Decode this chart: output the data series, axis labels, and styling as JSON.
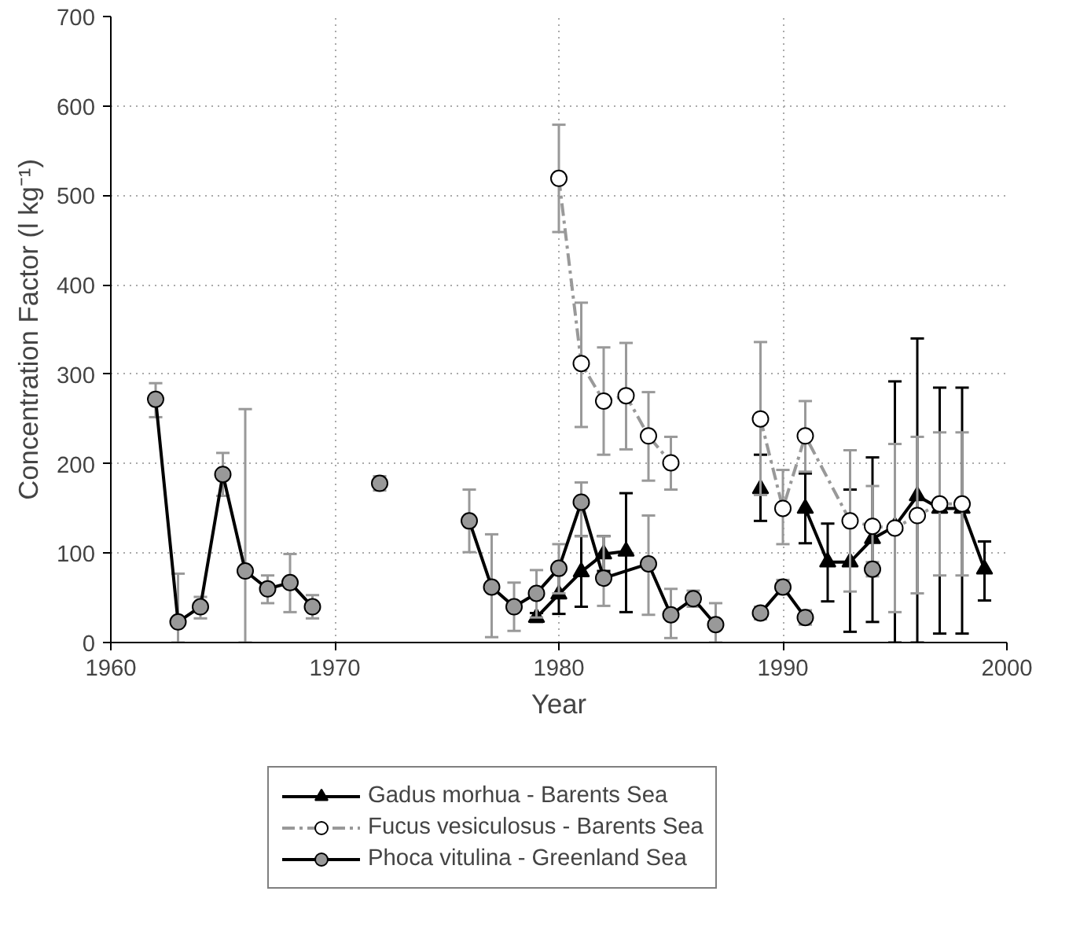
{
  "chart_data": {
    "type": "line",
    "xlabel": "Year",
    "ylabel": "Concentration Factor (l kg⁻¹)",
    "xlim": [
      1960,
      2000
    ],
    "ylim": [
      0,
      700
    ],
    "xticks": [
      1960,
      1970,
      1980,
      1990,
      2000
    ],
    "yticks": [
      0,
      100,
      200,
      300,
      400,
      500,
      600,
      700
    ],
    "grid": true,
    "legend": "bottom",
    "series": [
      {
        "name": "Gadus morhua - Barents Sea",
        "color": "#000000",
        "marker": "triangle",
        "line_style": "solid",
        "x": [
          1979,
          1980,
          1981,
          1982,
          1983,
          1986,
          1989,
          1990,
          1991,
          1992,
          1993,
          1994,
          1995,
          1996,
          1997,
          1998,
          1999
        ],
        "values": [
          28,
          54,
          79,
          99,
          102,
          null,
          172,
          null,
          150,
          90,
          90,
          116,
          130,
          164,
          150,
          150,
          82
        ],
        "errors": [
          [
            23,
            33
          ],
          [
            32,
            79
          ],
          [
            40,
            119
          ],
          [
            80,
            119
          ],
          [
            34,
            167
          ],
          null,
          [
            136,
            210
          ],
          null,
          [
            111,
            189
          ],
          [
            46,
            133
          ],
          [
            12,
            171
          ],
          [
            23,
            207
          ],
          [
            0,
            292
          ],
          [
            0,
            340
          ],
          [
            10,
            285
          ],
          [
            10,
            285
          ],
          [
            47,
            113
          ]
        ]
      },
      {
        "name": "Fucus vesiculosus - Barents Sea",
        "color": "#999999",
        "marker": "circle",
        "line_style": "dashed",
        "x": [
          1980,
          1981,
          1982,
          1983,
          1984,
          1985,
          1987,
          1989,
          1990,
          1991,
          1993,
          1994,
          1995,
          1996,
          1997,
          1998
        ],
        "values": [
          519,
          312,
          270,
          276,
          231,
          201,
          null,
          250,
          150,
          231,
          136,
          130,
          128,
          142,
          155,
          155
        ],
        "errors": [
          [
            459,
            579
          ],
          [
            241,
            380
          ],
          [
            210,
            330
          ],
          [
            216,
            335
          ],
          [
            181,
            280
          ],
          [
            171,
            230
          ],
          null,
          [
            165,
            336
          ],
          [
            110,
            193
          ],
          [
            191,
            270
          ],
          [
            57,
            215
          ],
          [
            85,
            175
          ],
          [
            34,
            222
          ],
          [
            55,
            230
          ],
          [
            75,
            235
          ],
          [
            75,
            235
          ]
        ]
      },
      {
        "name": "Phoca vitulina - Greenland Sea",
        "color": "#999999",
        "marker": "circle",
        "line_style": "solid",
        "x": [
          1962,
          1963,
          1964,
          1965,
          1966,
          1967,
          1968,
          1969,
          1970,
          1972,
          1974,
          1976,
          1977,
          1978,
          1979,
          1980,
          1981,
          1982,
          1984,
          1985,
          1986,
          1987,
          1988,
          1989,
          1990,
          1991,
          1992,
          1994
        ],
        "values": [
          272,
          23,
          40,
          188,
          80,
          60,
          67,
          40,
          null,
          178,
          null,
          136,
          62,
          40,
          55,
          83,
          157,
          72,
          88,
          31,
          49,
          20,
          null,
          33,
          62,
          28,
          null,
          82
        ],
        "errors": [
          [
            252,
            290
          ],
          [
            0,
            77
          ],
          [
            27,
            51
          ],
          [
            164,
            212
          ],
          [
            0,
            261
          ],
          [
            44,
            75
          ],
          [
            34,
            99
          ],
          [
            27,
            53
          ],
          null,
          [
            170,
            186
          ],
          null,
          [
            101,
            171
          ],
          [
            6,
            121
          ],
          [
            13,
            67
          ],
          [
            28,
            81
          ],
          [
            55,
            110
          ],
          [
            119,
            179
          ],
          [
            41,
            119
          ],
          [
            31,
            142
          ],
          [
            5,
            60
          ],
          [
            40,
            58
          ],
          [
            0,
            44
          ],
          null,
          [
            26,
            40
          ],
          [
            54,
            70
          ],
          [
            20,
            36
          ],
          null,
          [
            74,
            90
          ]
        ]
      }
    ]
  }
}
